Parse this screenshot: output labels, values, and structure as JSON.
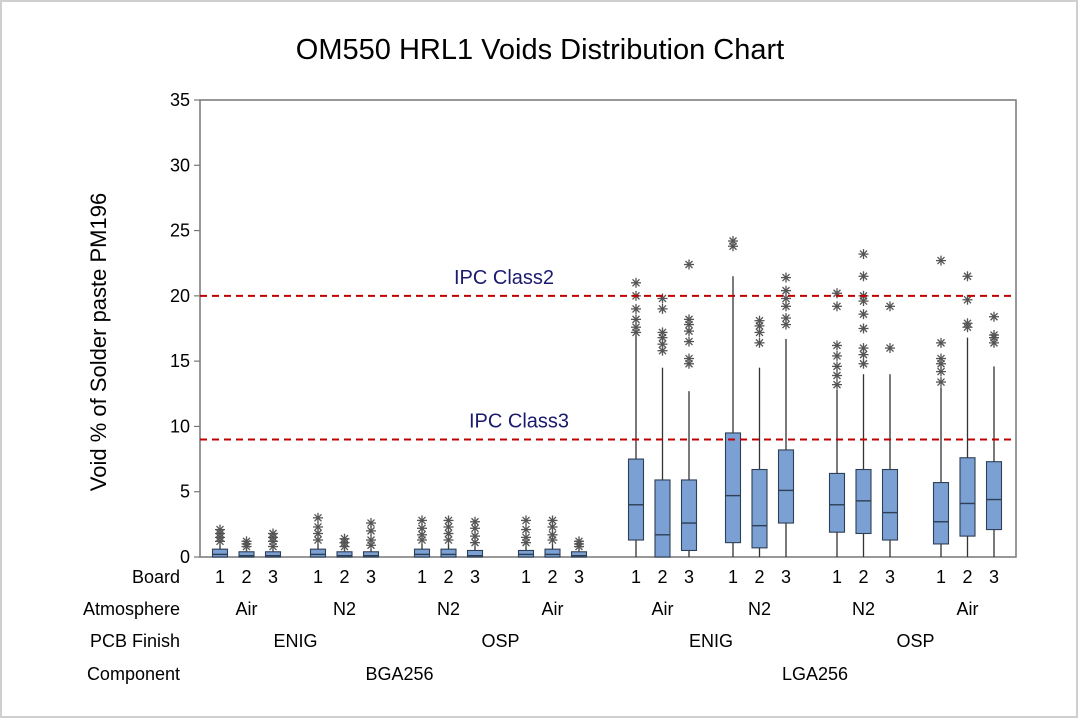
{
  "chart_data": {
    "type": "boxplot",
    "title": "OM550 HRL1 Voids Distribution Chart",
    "ylabel": "Void % of Solder paste PM196",
    "ylim": [
      0,
      35
    ],
    "yticks": [
      0,
      5,
      10,
      15,
      20,
      25,
      30,
      35
    ],
    "reference_lines": [
      {
        "label": "IPC Class2",
        "value": 20,
        "color": "#c00000"
      },
      {
        "label": "IPC Class3",
        "value": 9,
        "color": "#c00000"
      }
    ],
    "row_labels": {
      "board": "Board",
      "atmosphere": "Atmosphere",
      "finish": "PCB Finish",
      "component": "Component"
    },
    "groups": [
      {
        "component": "BGA256",
        "finish": "ENIG",
        "atmosphere": "Air",
        "boards": [
          {
            "board": "1",
            "min": 0,
            "q1": 0,
            "median": 0.2,
            "q3": 0.6,
            "max": 1.0,
            "outliers": [
              1.2,
              1.5,
              1.8,
              2.1
            ]
          },
          {
            "board": "2",
            "min": 0,
            "q1": 0,
            "median": 0.1,
            "q3": 0.4,
            "max": 0.6,
            "outliers": [
              0.8,
              1.0,
              1.2
            ]
          },
          {
            "board": "3",
            "min": 0,
            "q1": 0,
            "median": 0.1,
            "q3": 0.4,
            "max": 0.6,
            "outliers": [
              0.8,
              1.2,
              1.5,
              1.8
            ]
          }
        ]
      },
      {
        "component": "BGA256",
        "finish": "ENIG",
        "atmosphere": "N2",
        "boards": [
          {
            "board": "1",
            "min": 0,
            "q1": 0,
            "median": 0.2,
            "q3": 0.6,
            "max": 1.0,
            "outliers": [
              1.3,
              1.8,
              2.3,
              3.0
            ]
          },
          {
            "board": "2",
            "min": 0,
            "q1": 0,
            "median": 0.1,
            "q3": 0.4,
            "max": 0.6,
            "outliers": [
              0.8,
              1.1,
              1.4
            ]
          },
          {
            "board": "3",
            "min": 0,
            "q1": 0,
            "median": 0.1,
            "q3": 0.4,
            "max": 0.6,
            "outliers": [
              0.9,
              1.3,
              2.0,
              2.6
            ]
          }
        ]
      },
      {
        "component": "BGA256",
        "finish": "OSP",
        "atmosphere": "N2",
        "boards": [
          {
            "board": "1",
            "min": 0,
            "q1": 0,
            "median": 0.2,
            "q3": 0.6,
            "max": 1.0,
            "outliers": [
              1.3,
              1.7,
              2.2,
              2.8
            ]
          },
          {
            "board": "2",
            "min": 0,
            "q1": 0,
            "median": 0.2,
            "q3": 0.6,
            "max": 1.0,
            "outliers": [
              1.3,
              1.8,
              2.3,
              2.8
            ]
          },
          {
            "board": "3",
            "min": 0,
            "q1": 0,
            "median": 0.1,
            "q3": 0.5,
            "max": 0.8,
            "outliers": [
              1.1,
              1.6,
              2.2,
              2.7
            ]
          }
        ]
      },
      {
        "component": "BGA256",
        "finish": "OSP",
        "atmosphere": "Air",
        "boards": [
          {
            "board": "1",
            "min": 0,
            "q1": 0,
            "median": 0.2,
            "q3": 0.5,
            "max": 0.8,
            "outliers": [
              1.1,
              1.5,
              2.1,
              2.8
            ]
          },
          {
            "board": "2",
            "min": 0,
            "q1": 0,
            "median": 0.2,
            "q3": 0.6,
            "max": 1.0,
            "outliers": [
              1.3,
              1.7,
              2.3,
              2.8
            ]
          },
          {
            "board": "3",
            "min": 0,
            "q1": 0,
            "median": 0.1,
            "q3": 0.4,
            "max": 0.6,
            "outliers": [
              0.8,
              1.0,
              1.2
            ]
          }
        ]
      },
      {
        "component": "LGA256",
        "finish": "ENIG",
        "atmosphere": "Air",
        "boards": [
          {
            "board": "1",
            "min": 0,
            "q1": 1.3,
            "median": 4.0,
            "q3": 7.5,
            "max": 17.0,
            "outliers": [
              17.2,
              17.6,
              18.2,
              19.0,
              20.0,
              21.0
            ]
          },
          {
            "board": "2",
            "min": 0,
            "q1": 0,
            "median": 1.7,
            "q3": 5.9,
            "max": 14.5,
            "outliers": [
              15.8,
              16.3,
              16.8,
              17.2,
              19.0,
              19.8
            ]
          },
          {
            "board": "3",
            "min": 0,
            "q1": 0.5,
            "median": 2.6,
            "q3": 5.9,
            "max": 12.7,
            "outliers": [
              14.8,
              15.2,
              16.5,
              17.3,
              17.8,
              18.2,
              22.4
            ]
          }
        ]
      },
      {
        "component": "LGA256",
        "finish": "ENIG",
        "atmosphere": "N2",
        "boards": [
          {
            "board": "1",
            "min": 0,
            "q1": 1.1,
            "median": 4.7,
            "q3": 9.5,
            "max": 21.5,
            "outliers": [
              23.8,
              24.2
            ]
          },
          {
            "board": "2",
            "min": 0,
            "q1": 0.7,
            "median": 2.4,
            "q3": 6.7,
            "max": 14.5,
            "outliers": [
              16.4,
              17.2,
              17.7,
              18.1
            ]
          },
          {
            "board": "3",
            "min": 0,
            "q1": 2.6,
            "median": 5.1,
            "q3": 8.2,
            "max": 16.7,
            "outliers": [
              17.8,
              18.3,
              19.2,
              19.8,
              20.4,
              21.4
            ]
          }
        ]
      },
      {
        "component": "LGA256",
        "finish": "OSP",
        "atmosphere": "N2",
        "boards": [
          {
            "board": "1",
            "min": 0,
            "q1": 1.9,
            "median": 4.0,
            "q3": 6.4,
            "max": 12.8,
            "outliers": [
              13.2,
              13.9,
              14.6,
              15.4,
              16.2,
              19.2,
              20.2
            ]
          },
          {
            "board": "2",
            "min": 0,
            "q1": 1.8,
            "median": 4.3,
            "q3": 6.7,
            "max": 14.0,
            "outliers": [
              14.8,
              15.5,
              16.0,
              17.5,
              18.6,
              19.6,
              20.0,
              21.5,
              23.2
            ]
          },
          {
            "board": "3",
            "min": 0,
            "q1": 1.3,
            "median": 3.4,
            "q3": 6.7,
            "max": 14.0,
            "outliers": [
              16.0,
              19.2
            ]
          }
        ]
      },
      {
        "component": "LGA256",
        "finish": "OSP",
        "atmosphere": "Air",
        "boards": [
          {
            "board": "1",
            "min": 0,
            "q1": 1.0,
            "median": 2.7,
            "q3": 5.7,
            "max": 13.0,
            "outliers": [
              13.4,
              14.2,
              14.8,
              15.2,
              16.4,
              22.7
            ]
          },
          {
            "board": "2",
            "min": 0,
            "q1": 1.6,
            "median": 4.1,
            "q3": 7.6,
            "max": 16.8,
            "outliers": [
              17.6,
              17.9,
              19.7,
              21.5
            ]
          },
          {
            "board": "3",
            "min": 0,
            "q1": 2.1,
            "median": 4.4,
            "q3": 7.3,
            "max": 14.6,
            "outliers": [
              16.4,
              16.8,
              17.0,
              18.4
            ]
          }
        ]
      }
    ]
  },
  "colors": {
    "box_fill": "#7ba0d3",
    "box_stroke": "#2e3f56",
    "whisker": "#333333",
    "outlier": "#555555",
    "ref_line": "#c00000",
    "ref_label": "#1a1a6e",
    "axis": "#777777",
    "text": "#000000"
  }
}
